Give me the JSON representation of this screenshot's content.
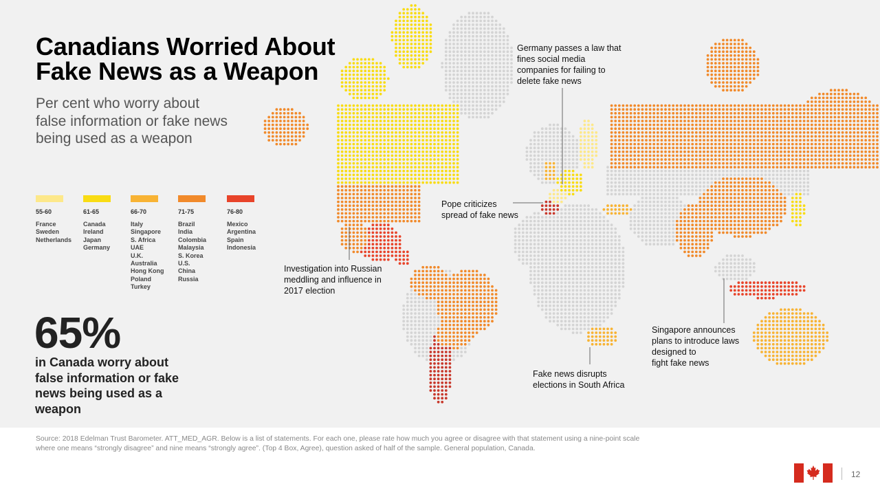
{
  "slide": {
    "title": [
      "Canadians Worried About",
      "Fake News as a Weapon"
    ],
    "subtitle": [
      "Per cent who worry about",
      "false information or fake news",
      "being used as a weapon"
    ]
  },
  "legend": [
    {
      "range": "55-60",
      "color": "#fde88a",
      "countries": [
        "France",
        "Sweden",
        "Netherlands"
      ]
    },
    {
      "range": "61-65",
      "color": "#f9dc14",
      "countries": [
        "Canada",
        "Ireland",
        "Japan",
        "Germany"
      ]
    },
    {
      "range": "66-70",
      "color": "#f8b334",
      "countries": [
        "Italy",
        "Singapore",
        "S. Africa",
        "UAE",
        "U.K.",
        "Australia",
        "Hong Kong",
        "Poland",
        "Turkey"
      ]
    },
    {
      "range": "71-75",
      "color": "#f18a2b",
      "countries": [
        "Brazil",
        "India",
        "Colombia",
        "Malaysia",
        "S. Korea",
        "U.S.",
        "China",
        "Russia"
      ]
    },
    {
      "range": "76-80",
      "color": "#e8442a",
      "countries": [
        "Mexico",
        "Argentina",
        "Spain",
        "Indonesia"
      ]
    }
  ],
  "highlight": {
    "value": "65%",
    "text": [
      "in Canada worry about",
      "false information or fake",
      "news being used as a",
      "weapon"
    ]
  },
  "annotations": {
    "germany": [
      "Germany passes a law that",
      "fines social media",
      "companies for failing to",
      "delete fake news"
    ],
    "pope": [
      "Pope criticizes",
      "spread of fake news"
    ],
    "russia": [
      "Investigation into Russian",
      "meddling and influence in",
      "2017 election"
    ],
    "singapore": [
      "Singapore announces",
      "plans to introduce laws",
      "designed to",
      "fight fake news"
    ],
    "south_africa": [
      "Fake news disrupts",
      "elections in South Africa"
    ]
  },
  "footer": {
    "source": "Source: 2018 Edelman Trust Barometer. ATT_MED_AGR. Below is a list of statements. For each one, please rate how much you agree or disagree with that statement using a nine-point scale where one means “strongly disagree” and nine means “strongly agree”. (Top 4 Box, Agree), question asked of half of the sample. General population, Canada.",
    "page_number": "12"
  },
  "map_colors": {
    "no_data": "#d4d4d4",
    "tier_55_60": "#fde88a",
    "tier_61_65": "#f9dc14",
    "tier_66_70": "#f8b334",
    "tier_71_75": "#f18a2b",
    "tier_76_80": "#e8442a",
    "latin_dark": "#c8382b"
  }
}
